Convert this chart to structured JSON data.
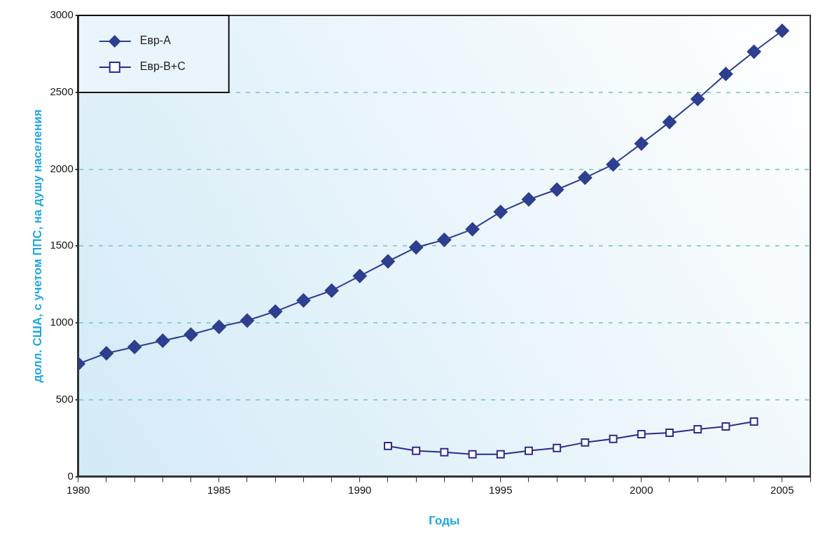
{
  "chart_data": {
    "type": "line",
    "xlabel": "Годы",
    "ylabel": "долл. США, с учетом ППС, на душу населения",
    "x": [
      1980,
      1981,
      1982,
      1983,
      1984,
      1985,
      1986,
      1987,
      1988,
      1989,
      1990,
      1991,
      1992,
      1993,
      1994,
      1995,
      1996,
      1997,
      1998,
      1999,
      2000,
      2001,
      2002,
      2003,
      2004,
      2005
    ],
    "series": [
      {
        "name": "Евр-A",
        "color": "#2e3f8f",
        "marker": "diamond",
        "values": [
          734,
          802,
          843,
          884,
          924,
          974,
          1015,
          1074,
          1146,
          1210,
          1305,
          1400,
          1491,
          1540,
          1609,
          1722,
          1803,
          1867,
          1944,
          2030,
          2166,
          2306,
          2456,
          2619,
          2764,
          2900
        ]
      },
      {
        "name": "Евр-B+C",
        "color": "#2e2a8a",
        "marker": "square",
        "x": [
          1991,
          1992,
          1993,
          1994,
          1995,
          1996,
          1997,
          1998,
          1999,
          2000,
          2001,
          2002,
          2003,
          2004
        ],
        "values": [
          199,
          168,
          159,
          145,
          145,
          168,
          186,
          222,
          245,
          276,
          285,
          308,
          326,
          358
        ]
      }
    ],
    "xlim": [
      1980,
      2006
    ],
    "xticks": [
      1980,
      {
        "value": 1981,
        "label": null
      },
      {
        "value": 1982,
        "label": null
      },
      {
        "value": 1983,
        "label": null
      },
      {
        "value": 1984,
        "label": null
      },
      1985,
      {
        "value": 1986,
        "label": null
      },
      {
        "value": 1987,
        "label": null
      },
      {
        "value": 1988,
        "label": null
      },
      {
        "value": 1989,
        "label": null
      },
      1990,
      {
        "value": 1991,
        "label": null
      },
      {
        "value": 1992,
        "label": null
      },
      {
        "value": 1993,
        "label": null
      },
      {
        "value": 1994,
        "label": null
      },
      1995,
      {
        "value": 1996,
        "label": null
      },
      {
        "value": 1997,
        "label": null
      },
      {
        "value": 1998,
        "label": null
      },
      {
        "value": 1999,
        "label": null
      },
      2000,
      {
        "value": 2001,
        "label": null
      },
      {
        "value": 2002,
        "label": null
      },
      {
        "value": 2003,
        "label": null
      },
      {
        "value": 2004,
        "label": null
      },
      2005,
      {
        "value": 2006,
        "label": null
      }
    ],
    "ylim": [
      0,
      3000
    ],
    "yticks": [
      0,
      500,
      1000,
      1500,
      2000,
      2500,
      3000
    ],
    "grid": "y",
    "legend": "top left"
  }
}
